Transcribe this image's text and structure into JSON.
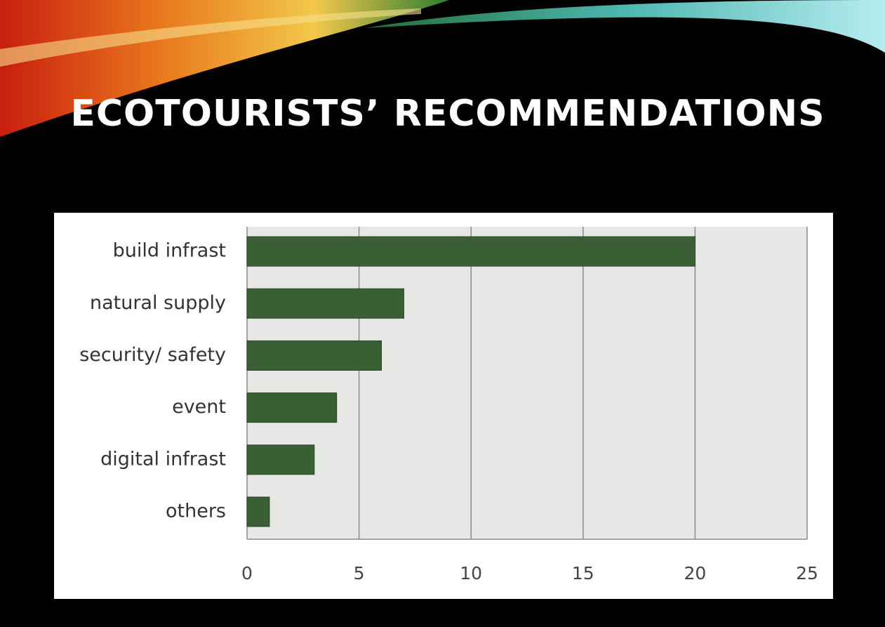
{
  "chart_data": {
    "type": "bar",
    "orientation": "horizontal",
    "title": "ECOTOURISTS’ RECOMMENDATIONS",
    "categories": [
      "build infrast",
      "natural supply",
      "security/ safety",
      "event",
      "digital infrast",
      "others"
    ],
    "values": [
      20,
      7,
      6,
      4,
      3,
      1
    ],
    "color": "#3a5f35",
    "xlim": [
      0,
      25
    ],
    "xticks": [
      0,
      5,
      10,
      15,
      20,
      25
    ],
    "grid": true
  }
}
